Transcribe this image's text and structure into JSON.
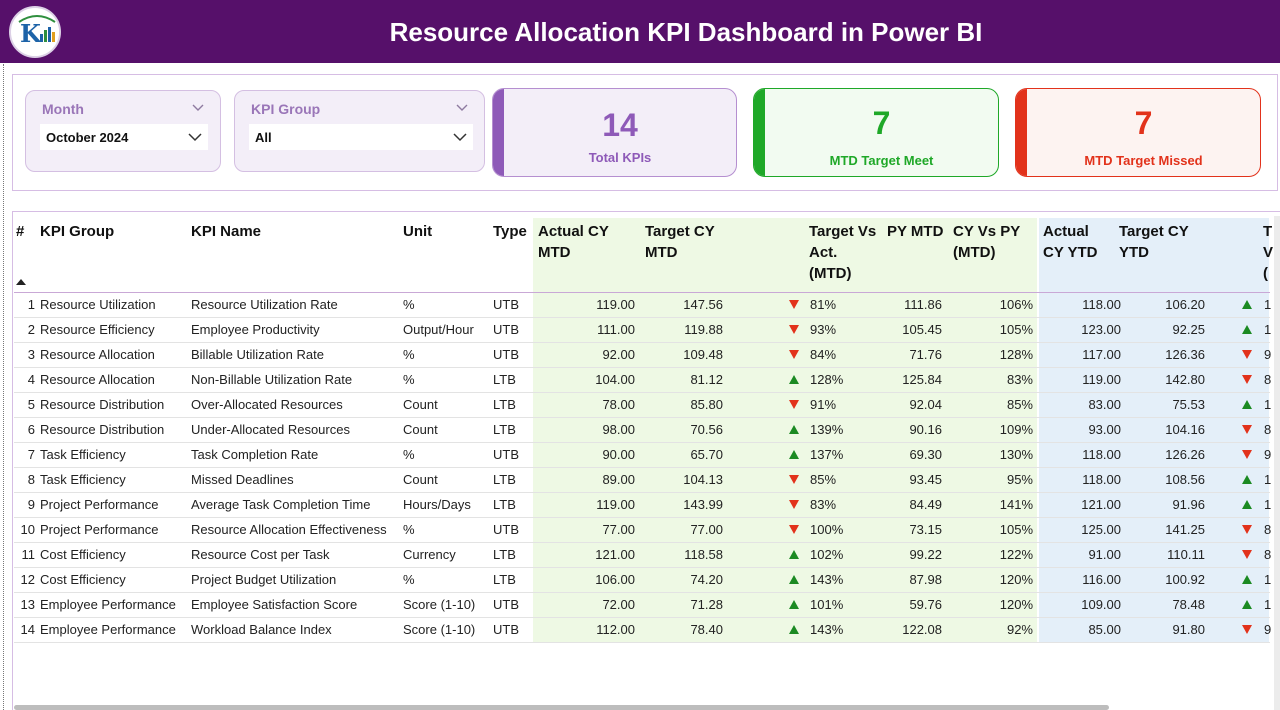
{
  "header": {
    "title": "Resource Allocation KPI Dashboard in Power BI"
  },
  "colors": {
    "header_bg": "#56106a",
    "purple": "#8e5ab8",
    "green": "#1fa828",
    "red": "#e2321b",
    "band_mtd": "#eef9e4",
    "band_ytd": "#e4eff9"
  },
  "filters": {
    "month": {
      "label": "Month",
      "value": "October 2024"
    },
    "kpi_group": {
      "label": "KPI Group",
      "value": "All"
    }
  },
  "cards": {
    "total": {
      "value": "14",
      "label": "Total KPIs"
    },
    "meet": {
      "value": "7",
      "label": "MTD Target Meet"
    },
    "missed": {
      "value": "7",
      "label": "MTD Target Missed"
    }
  },
  "table": {
    "headers": {
      "num": "#",
      "group": "KPI Group",
      "name": "KPI Name",
      "unit": "Unit",
      "type": "Type",
      "actual_mtd": [
        "Actual CY",
        "MTD"
      ],
      "target_mtd": [
        "Target CY",
        "MTD"
      ],
      "tva_mtd": [
        "Target Vs",
        "Act.",
        "(MTD)"
      ],
      "py_mtd": "PY MTD",
      "cvp_mtd": [
        "CY Vs PY",
        "(MTD)"
      ],
      "actual_ytd": [
        "Actual",
        "CY YTD"
      ],
      "target_ytd": [
        "Target CY",
        "YTD"
      ],
      "tva_ytd_partial": [
        "T",
        "V",
        "("
      ]
    },
    "rows": [
      {
        "n": "1",
        "group": "Resource Utilization",
        "name": "Resource Utilization Rate",
        "unit": "%",
        "type": "UTB",
        "a_mtd": "119.00",
        "t_mtd": "147.56",
        "m_dir": "down",
        "m_pct": "81%",
        "py": "111.86",
        "cvp": "106%",
        "a_ytd": "118.00",
        "t_ytd": "106.20",
        "y_dir": "up",
        "y_pct": "1"
      },
      {
        "n": "2",
        "group": "Resource Efficiency",
        "name": "Employee Productivity",
        "unit": "Output/Hour",
        "type": "UTB",
        "a_mtd": "111.00",
        "t_mtd": "119.88",
        "m_dir": "down",
        "m_pct": "93%",
        "py": "105.45",
        "cvp": "105%",
        "a_ytd": "123.00",
        "t_ytd": "92.25",
        "y_dir": "up",
        "y_pct": "1"
      },
      {
        "n": "3",
        "group": "Resource Allocation",
        "name": "Billable Utilization Rate",
        "unit": "%",
        "type": "UTB",
        "a_mtd": "92.00",
        "t_mtd": "109.48",
        "m_dir": "down",
        "m_pct": "84%",
        "py": "71.76",
        "cvp": "128%",
        "a_ytd": "117.00",
        "t_ytd": "126.36",
        "y_dir": "down",
        "y_pct": "9"
      },
      {
        "n": "4",
        "group": "Resource Allocation",
        "name": "Non-Billable Utilization Rate",
        "unit": "%",
        "type": "LTB",
        "a_mtd": "104.00",
        "t_mtd": "81.12",
        "m_dir": "up",
        "m_pct": "128%",
        "py": "125.84",
        "cvp": "83%",
        "a_ytd": "119.00",
        "t_ytd": "142.80",
        "y_dir": "down",
        "y_pct": "8"
      },
      {
        "n": "5",
        "group": "Resource Distribution",
        "name": "Over-Allocated Resources",
        "unit": "Count",
        "type": "LTB",
        "a_mtd": "78.00",
        "t_mtd": "85.80",
        "m_dir": "down",
        "m_pct": "91%",
        "py": "92.04",
        "cvp": "85%",
        "a_ytd": "83.00",
        "t_ytd": "75.53",
        "y_dir": "up",
        "y_pct": "1"
      },
      {
        "n": "6",
        "group": "Resource Distribution",
        "name": "Under-Allocated Resources",
        "unit": "Count",
        "type": "LTB",
        "a_mtd": "98.00",
        "t_mtd": "70.56",
        "m_dir": "up",
        "m_pct": "139%",
        "py": "90.16",
        "cvp": "109%",
        "a_ytd": "93.00",
        "t_ytd": "104.16",
        "y_dir": "down",
        "y_pct": "8"
      },
      {
        "n": "7",
        "group": "Task Efficiency",
        "name": "Task Completion Rate",
        "unit": "%",
        "type": "UTB",
        "a_mtd": "90.00",
        "t_mtd": "65.70",
        "m_dir": "up",
        "m_pct": "137%",
        "py": "69.30",
        "cvp": "130%",
        "a_ytd": "118.00",
        "t_ytd": "126.26",
        "y_dir": "down",
        "y_pct": "9"
      },
      {
        "n": "8",
        "group": "Task Efficiency",
        "name": "Missed Deadlines",
        "unit": "Count",
        "type": "LTB",
        "a_mtd": "89.00",
        "t_mtd": "104.13",
        "m_dir": "down",
        "m_pct": "85%",
        "py": "93.45",
        "cvp": "95%",
        "a_ytd": "118.00",
        "t_ytd": "108.56",
        "y_dir": "up",
        "y_pct": "1"
      },
      {
        "n": "9",
        "group": "Project Performance",
        "name": "Average Task Completion Time",
        "unit": "Hours/Days",
        "type": "LTB",
        "a_mtd": "119.00",
        "t_mtd": "143.99",
        "m_dir": "down",
        "m_pct": "83%",
        "py": "84.49",
        "cvp": "141%",
        "a_ytd": "121.00",
        "t_ytd": "91.96",
        "y_dir": "up",
        "y_pct": "1"
      },
      {
        "n": "10",
        "group": "Project Performance",
        "name": "Resource Allocation Effectiveness",
        "unit": "%",
        "type": "UTB",
        "a_mtd": "77.00",
        "t_mtd": "77.00",
        "m_dir": "down",
        "m_pct": "100%",
        "py": "73.15",
        "cvp": "105%",
        "a_ytd": "125.00",
        "t_ytd": "141.25",
        "y_dir": "down",
        "y_pct": "8"
      },
      {
        "n": "11",
        "group": "Cost Efficiency",
        "name": "Resource Cost per Task",
        "unit": "Currency",
        "type": "LTB",
        "a_mtd": "121.00",
        "t_mtd": "118.58",
        "m_dir": "up",
        "m_pct": "102%",
        "py": "99.22",
        "cvp": "122%",
        "a_ytd": "91.00",
        "t_ytd": "110.11",
        "y_dir": "down",
        "y_pct": "8"
      },
      {
        "n": "12",
        "group": "Cost Efficiency",
        "name": "Project Budget Utilization",
        "unit": "%",
        "type": "LTB",
        "a_mtd": "106.00",
        "t_mtd": "74.20",
        "m_dir": "up",
        "m_pct": "143%",
        "py": "87.98",
        "cvp": "120%",
        "a_ytd": "116.00",
        "t_ytd": "100.92",
        "y_dir": "up",
        "y_pct": "1"
      },
      {
        "n": "13",
        "group": "Employee Performance",
        "name": "Employee Satisfaction Score",
        "unit": "Score (1-10)",
        "type": "UTB",
        "a_mtd": "72.00",
        "t_mtd": "71.28",
        "m_dir": "up",
        "m_pct": "101%",
        "py": "59.76",
        "cvp": "120%",
        "a_ytd": "109.00",
        "t_ytd": "78.48",
        "y_dir": "up",
        "y_pct": "1"
      },
      {
        "n": "14",
        "group": "Employee Performance",
        "name": "Workload Balance Index",
        "unit": "Score (1-10)",
        "type": "UTB",
        "a_mtd": "112.00",
        "t_mtd": "78.40",
        "m_dir": "up",
        "m_pct": "143%",
        "py": "122.08",
        "cvp": "92%",
        "a_ytd": "85.00",
        "t_ytd": "91.80",
        "y_dir": "down",
        "y_pct": "9"
      }
    ]
  }
}
